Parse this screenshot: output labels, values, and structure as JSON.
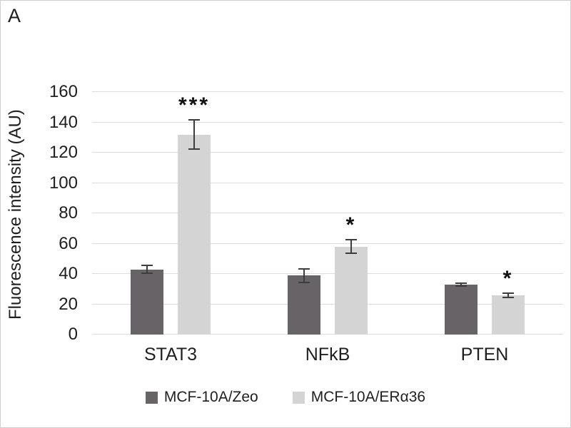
{
  "panel_label": "A",
  "colors": {
    "series_dark": "#676367",
    "series_light": "#d4d4d4",
    "gridline": "#dcdcdc",
    "error_bar": "#3d3d3d",
    "text": "#1f1f1f"
  },
  "chart_data": {
    "type": "bar",
    "title": "",
    "panel_label": "A",
    "categories": [
      "STAT3",
      "NFkB",
      "PTEN"
    ],
    "series": [
      {
        "name": "MCF-10A/Zeo",
        "color": "#676367",
        "values": [
          43,
          39,
          33
        ],
        "errors": [
          3,
          5,
          1.5
        ],
        "significance": [
          "",
          "",
          ""
        ]
      },
      {
        "name": "MCF-10A/ERα36",
        "color": "#d4d4d4",
        "values": [
          132,
          58,
          26
        ],
        "errors": [
          10,
          5,
          2
        ],
        "significance": [
          "***",
          "*",
          "*"
        ]
      }
    ],
    "xlabel": "",
    "ylabel": "Fluorescence intensity (AU)",
    "ylim": [
      0,
      160
    ],
    "yticks": [
      0,
      20,
      40,
      60,
      80,
      100,
      120,
      140,
      160
    ],
    "grid": true,
    "legend_position": "bottom"
  }
}
